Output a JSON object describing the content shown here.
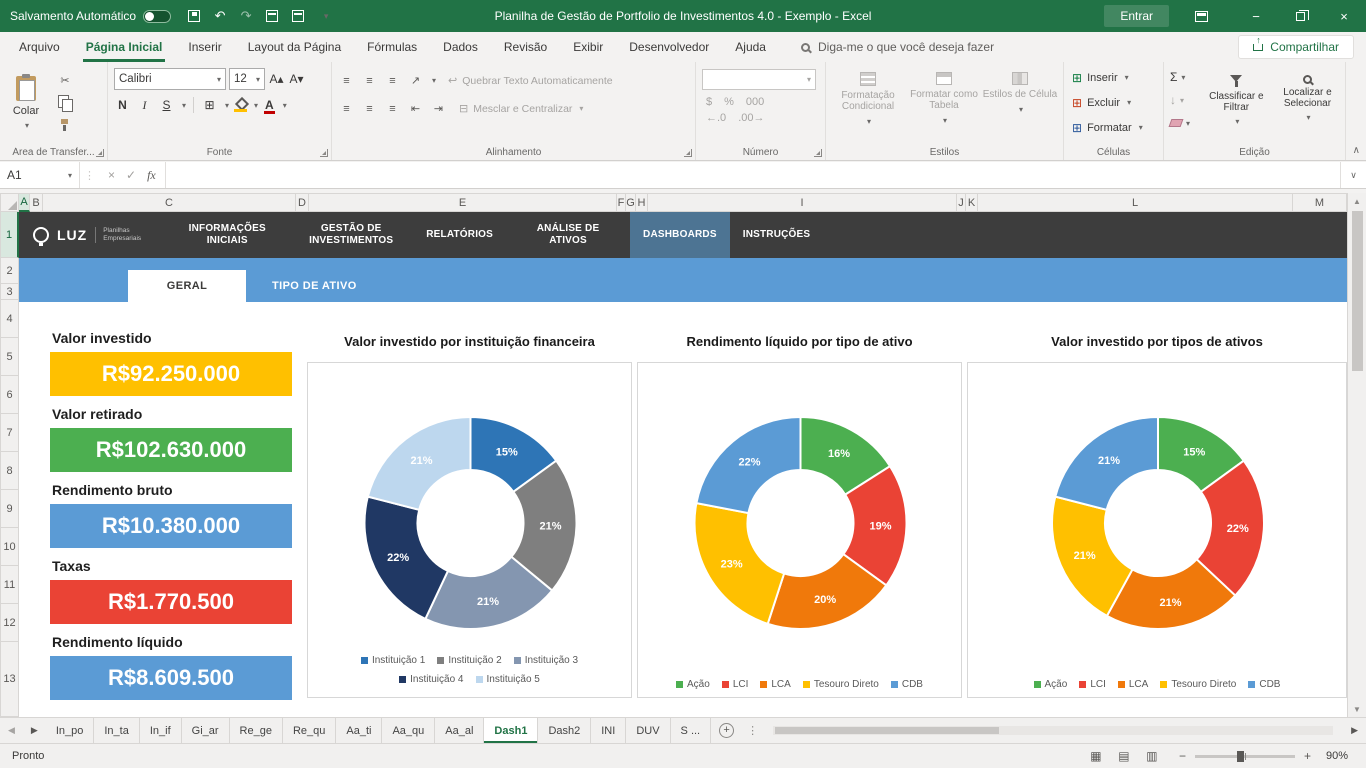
{
  "colors": {
    "excel_green": "#217346",
    "band_blue": "#5B9BD5",
    "nav_dark": "#3D3D3D",
    "nav_active": "#4D7493"
  },
  "icons": {
    "chevron_down": "▾",
    "caret_down": "∨",
    "caret_up": "∧",
    "minus": "−",
    "plus": "+",
    "close": "×",
    "close_small": "×",
    "check": "✓",
    "undo": "↶",
    "redo": "↷",
    "scissors": "✂",
    "borders": "⊞",
    "align_lines": "≡",
    "orientation": "↗",
    "indent_left": "⇤",
    "indent_right": "⇥",
    "wrap": "↩",
    "merge": "⊟",
    "money": "$",
    "percent": "%",
    "inc_decimal": "←.0",
    "dec_decimal": ".00→",
    "sum": "Σ",
    "fill_down": "↓",
    "cells": "⊞",
    "font_up": "A▴",
    "font_down": "A▾",
    "tri_left": "◀",
    "tri_right": "▶",
    "tri_up": "▲",
    "tri_down": "▼",
    "vdots": "⋮",
    "view_normal": "▦",
    "view_layout": "▤",
    "view_break": "▥"
  },
  "title_bar": {
    "autosave_label": "Salvamento Automático",
    "title": "Planilha de Gestão de Portfolio de Investimentos 4.0  -  Exemplo  -  Excel",
    "sign_in": "Entrar"
  },
  "ribbon": {
    "tabs": [
      {
        "label": "Arquivo",
        "active": false
      },
      {
        "label": "Página Inicial",
        "active": true
      },
      {
        "label": "Inserir",
        "active": false
      },
      {
        "label": "Layout da Página",
        "active": false
      },
      {
        "label": "Fórmulas",
        "active": false
      },
      {
        "label": "Dados",
        "active": false
      },
      {
        "label": "Revisão",
        "active": false
      },
      {
        "label": "Exibir",
        "active": false
      },
      {
        "label": "Desenvolvedor",
        "active": false
      },
      {
        "label": "Ajuda",
        "active": false
      }
    ],
    "search_placeholder": "Diga-me o que você deseja fazer",
    "share_label": "Compartilhar",
    "groups": [
      "Área de Transfer...",
      "Fonte",
      "Alinhamento",
      "Número",
      "Estilos",
      "Células",
      "Edição"
    ],
    "clipboard": {
      "paste_label": "Colar"
    },
    "font_name": "Calibri",
    "font_size": "12",
    "font_bold": "N",
    "font_italic": "I",
    "font_underline": "S",
    "font_color_letter": "A",
    "alinhamento": {
      "wrap_label": "Quebrar Texto Automaticamente",
      "merge_label": "Mesclar e Centralizar"
    },
    "numero": {
      "thousands": "000"
    },
    "estilos": [
      "Formatação Condicional",
      "Formatar como Tabela",
      "Estilos de Célula"
    ],
    "celulas": [
      "Inserir",
      "Excluir",
      "Formatar"
    ],
    "edicao": {
      "sort_label": "Classificar e Filtrar",
      "find_label": "Localizar e Selecionar"
    }
  },
  "formula_bar": {
    "name_box": "A1",
    "fx_label": "fx",
    "formula": ""
  },
  "grid": {
    "columns": [
      "A",
      "B",
      "C",
      "D",
      "E",
      "F",
      "G",
      "H",
      "I",
      "J",
      "K",
      "L",
      "M"
    ],
    "rows": [
      "1",
      "2",
      "3",
      "4",
      "5",
      "6",
      "7",
      "8",
      "9",
      "10",
      "11",
      "12",
      "13"
    ]
  },
  "dashboard": {
    "nav": {
      "logo": "LUZ",
      "logo_sub": "Planilhas Empresariais",
      "items": [
        {
          "label": "INFORMAÇÕES INICIAIS",
          "active": false
        },
        {
          "label": "GESTÃO DE INVESTIMENTOS",
          "active": false
        },
        {
          "label": "RELATÓRIOS",
          "active": false
        },
        {
          "label": "ANÁLISE DE ATIVOS",
          "active": false
        },
        {
          "label": "DASHBOARDS",
          "active": true
        },
        {
          "label": "INSTRUÇÕES",
          "active": false
        }
      ]
    },
    "view_tabs": [
      {
        "label": "GERAL",
        "active": true
      },
      {
        "label": "TIPO DE ATIVO",
        "active": false
      }
    ],
    "kpis": [
      {
        "label": "Valor investido",
        "value": "R$92.250.000",
        "color": "#FFC000"
      },
      {
        "label": "Valor retirado",
        "value": "R$102.630.000",
        "color": "#4CAF50"
      },
      {
        "label": "Rendimento bruto",
        "value": "R$10.380.000",
        "color": "#5B9BD5"
      },
      {
        "label": "Taxas",
        "value": "R$1.770.500",
        "color": "#EA4335"
      },
      {
        "label": "Rendimento líquido",
        "value": "R$8.609.500",
        "color": "#5B9BD5"
      }
    ]
  },
  "chart_data": [
    {
      "type": "donut",
      "title": "Valor investido por instituição financeira",
      "labels": [
        "Instituição 1",
        "Instituição 2",
        "Instituição 3",
        "Instituição 4",
        "Instituição 5"
      ],
      "values": [
        15,
        21,
        21,
        22,
        21
      ],
      "data_labels": [
        "15%",
        "21%",
        "21%",
        "22%",
        "21%"
      ],
      "colors": [
        "#2E75B6",
        "#7F7F7F",
        "#8496B0",
        "#203864",
        "#BDD7EE"
      ],
      "hole": 0.5,
      "start_angle": 0,
      "legend_position": "bottom",
      "legend_rows": [
        [
          0,
          1,
          2
        ],
        [
          3,
          4
        ]
      ]
    },
    {
      "type": "donut",
      "title": "Rendimento líquido por tipo de ativo",
      "labels": [
        "Ação",
        "LCI",
        "LCA",
        "Tesouro Direto",
        "CDB"
      ],
      "values": [
        16,
        19,
        20,
        23,
        22
      ],
      "data_labels": [
        "16%",
        "19%",
        "20%",
        "23%",
        "22%"
      ],
      "colors": [
        "#4CAF50",
        "#EA4335",
        "#F0790B",
        "#FFC000",
        "#5B9BD5"
      ],
      "hole": 0.5,
      "start_angle": 0,
      "legend_position": "bottom",
      "legend_rows": [
        [
          0,
          1,
          2,
          3,
          4
        ]
      ]
    },
    {
      "type": "donut",
      "title": "Valor investido por tipos de ativos",
      "labels": [
        "Ação",
        "LCI",
        "LCA",
        "Tesouro Direto",
        "CDB"
      ],
      "values": [
        15,
        22,
        21,
        21,
        21
      ],
      "data_labels": [
        "15%",
        "22%",
        "21%",
        "21%",
        "21%"
      ],
      "colors": [
        "#4CAF50",
        "#EA4335",
        "#F0790B",
        "#FFC000",
        "#5B9BD5"
      ],
      "hole": 0.5,
      "start_angle": 0,
      "legend_position": "bottom",
      "legend_rows": [
        [
          0,
          1,
          2,
          3,
          4
        ]
      ]
    }
  ],
  "sheet_tabs": {
    "tabs": [
      "In_po",
      "In_ta",
      "In_if",
      "Gi_ar",
      "Re_ge",
      "Re_qu",
      "Aa_ti",
      "Aa_qu",
      "Aa_al",
      "Dash1",
      "Dash2",
      "INI",
      "DUV",
      "S ..."
    ],
    "active": "Dash1"
  },
  "status_bar": {
    "ready": "Pronto",
    "zoom": "90%"
  }
}
